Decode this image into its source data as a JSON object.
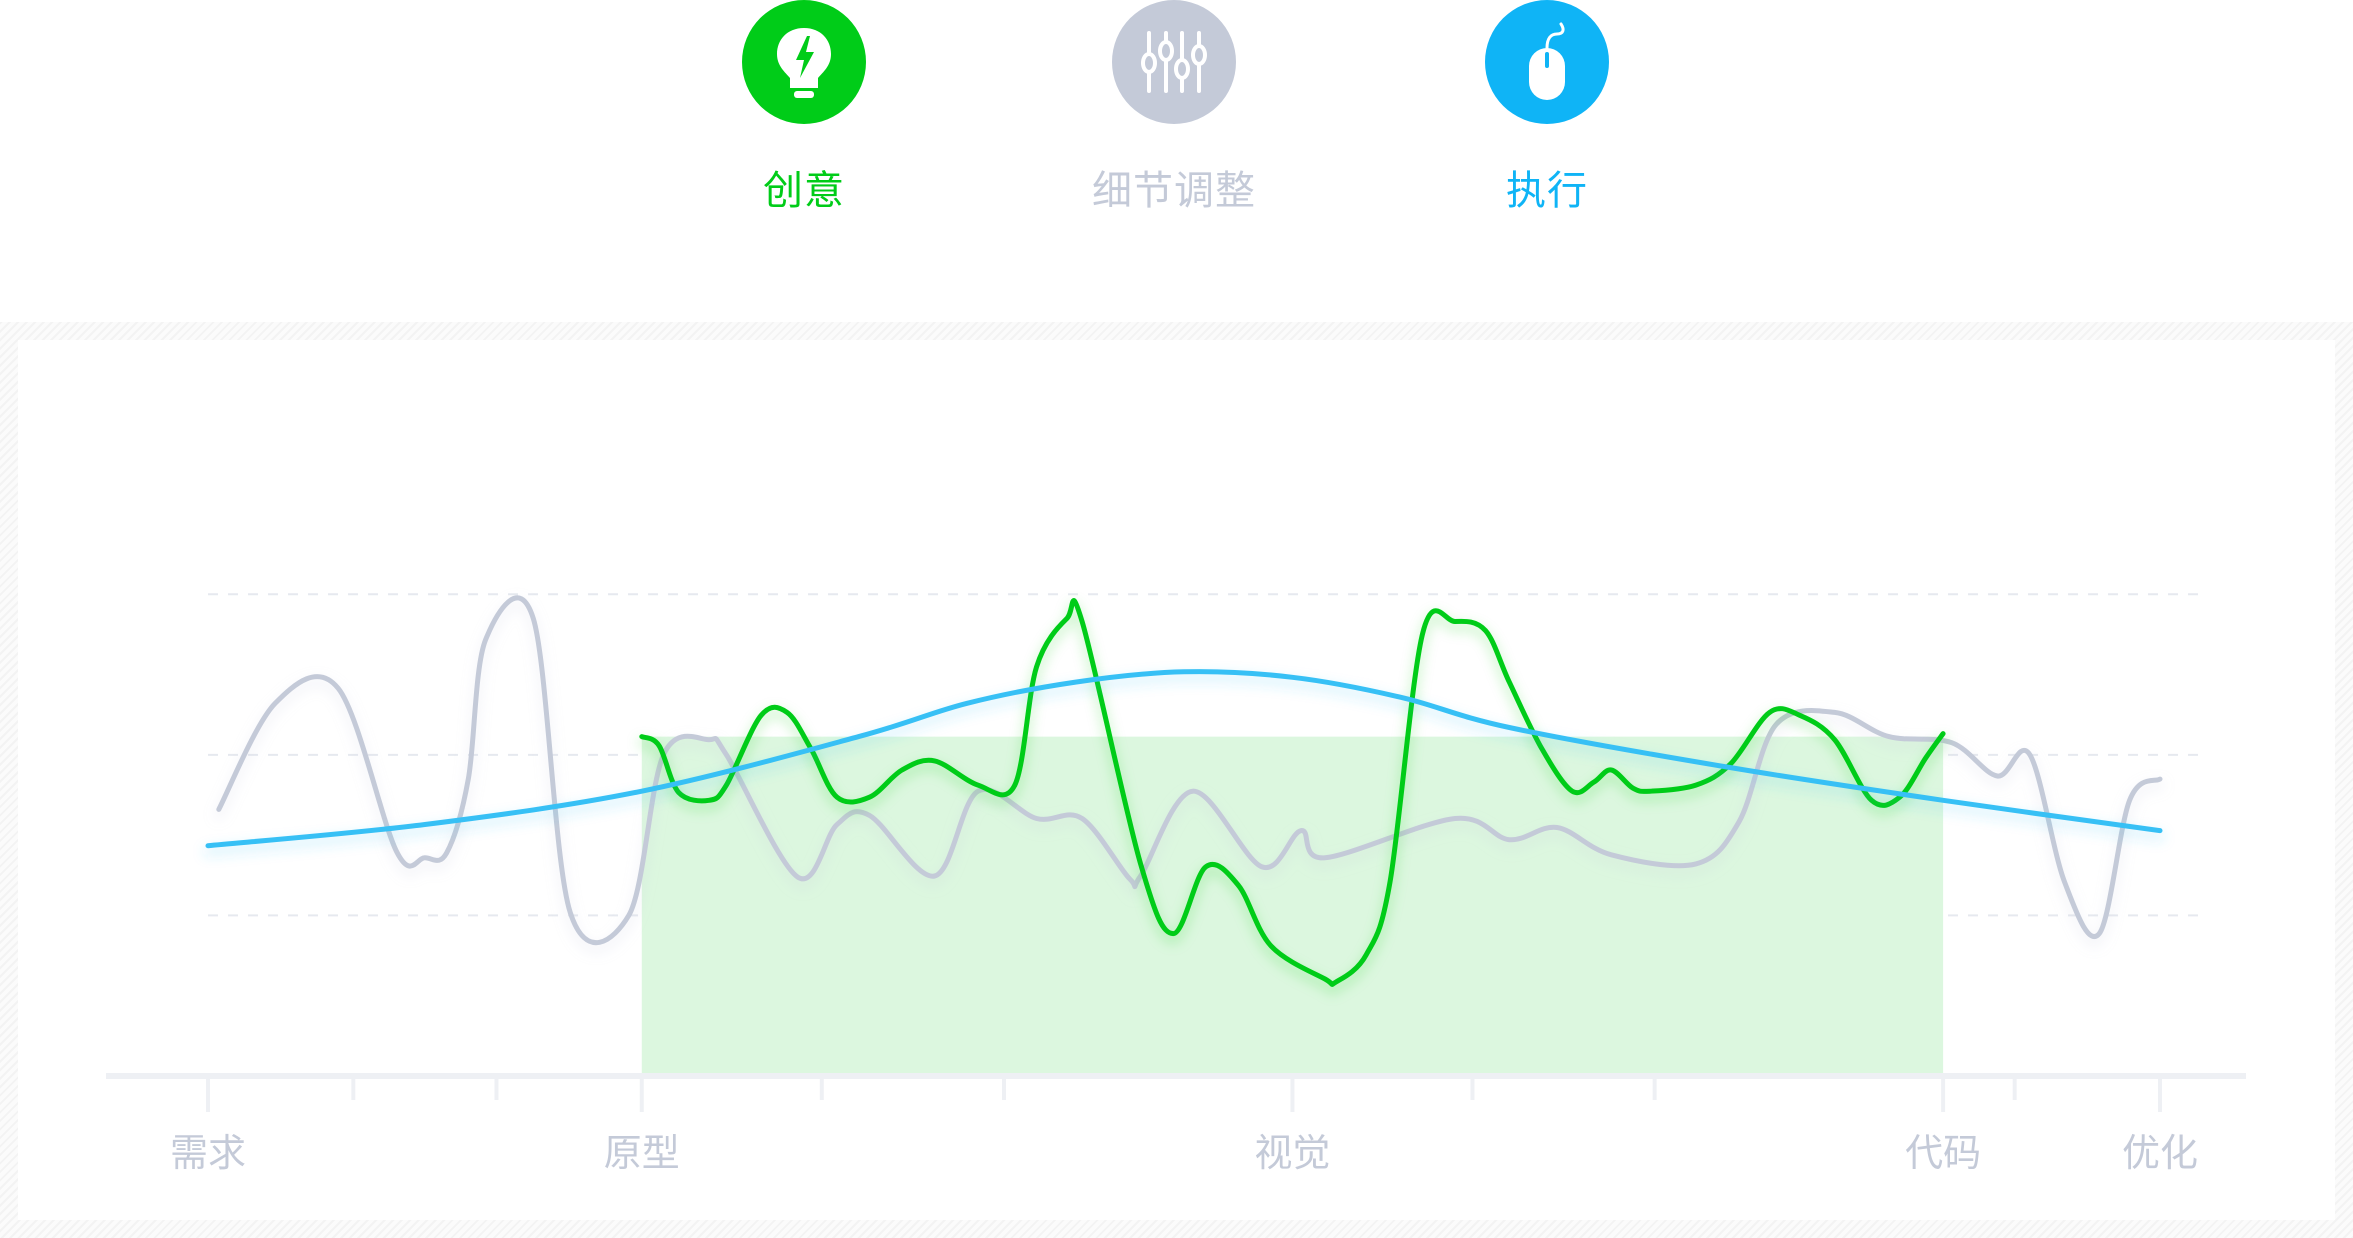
{
  "legend": [
    {
      "label": "创意",
      "color": "#00cc18",
      "icon": "lightbulb-bolt-icon"
    },
    {
      "label": "细节调整",
      "color": "#c4cad8",
      "icon": "sliders-icon"
    },
    {
      "label": "执行",
      "color": "#0fb4f6",
      "icon": "mouse-icon"
    }
  ],
  "chart_data": {
    "type": "line",
    "categories": [
      "需求",
      "原型",
      "视觉",
      "代码",
      "优化"
    ],
    "series": [
      {
        "name": "细节调整",
        "color": "#c4cad8",
        "x": [
          0.05,
          0.31,
          0.6,
          0.87,
          1.0,
          1.1,
          1.2,
          1.28,
          1.5,
          1.67,
          1.94,
          2.1,
          2.31,
          2.39,
          2.72,
          2.9,
          3.05,
          3.35,
          3.55,
          3.82,
          4.03,
          4.25,
          4.3,
          4.54,
          4.86,
          5.04,
          5.15,
          5.75,
          6.0,
          6.22,
          6.47,
          6.86,
          7.06,
          7.23,
          7.5,
          7.75,
          8.04,
          8.25,
          8.4,
          8.56,
          8.72,
          8.86,
          9.0
        ],
        "y": [
          4.4,
          6.15,
          6.4,
          3.7,
          3.6,
          3.68,
          4.9,
          7.2,
          7.55,
          2.7,
          2.65,
          5.3,
          5.55,
          5.3,
          3.28,
          4.15,
          4.3,
          3.3,
          4.7,
          4.25,
          4.25,
          3.25,
          3.3,
          4.7,
          3.45,
          4.05,
          3.6,
          4.25,
          3.9,
          4.1,
          3.65,
          3.5,
          4.2,
          5.8,
          6.0,
          5.6,
          5.5,
          4.95,
          5.3,
          3.2,
          2.35,
          4.55,
          4.9
        ]
      },
      {
        "name": "创意",
        "color": "#00cc18",
        "x": [
          2.0,
          2.08,
          2.17,
          2.31,
          2.39,
          2.55,
          2.67,
          2.78,
          2.9,
          3.05,
          3.2,
          3.35,
          3.55,
          3.72,
          3.82,
          3.96,
          4.03,
          4.3,
          4.45,
          4.6,
          4.75,
          4.9,
          5.15,
          5.2,
          5.34,
          5.45,
          5.6,
          5.75,
          5.89,
          6.0,
          6.15,
          6.29,
          6.39,
          6.47,
          6.57,
          6.65,
          6.86,
          7.02,
          7.2,
          7.34,
          7.5,
          7.67,
          7.8,
          7.92,
          8.0
        ],
        "y": [
          5.6,
          5.45,
          4.68,
          4.55,
          4.8,
          5.95,
          6.0,
          5.4,
          4.6,
          4.6,
          5.05,
          5.2,
          4.8,
          4.8,
          6.75,
          7.55,
          7.5,
          3.5,
          2.35,
          3.45,
          3.15,
          2.15,
          1.6,
          1.55,
          2.0,
          3.2,
          7.3,
          7.5,
          7.35,
          6.5,
          5.4,
          4.7,
          4.85,
          5.05,
          4.75,
          4.7,
          4.8,
          5.15,
          6.0,
          5.95,
          5.55,
          4.55,
          4.6,
          5.25,
          5.65
        ]
      },
      {
        "name": "执行",
        "color": "#37c0f5",
        "x": [
          0,
          1,
          2,
          3,
          3.5,
          4,
          4.5,
          5,
          5.5,
          6,
          7,
          8,
          9
        ],
        "y": [
          3.8,
          4.15,
          4.7,
          5.6,
          6.15,
          6.5,
          6.67,
          6.58,
          6.25,
          5.75,
          5.1,
          4.55,
          4.05
        ]
      }
    ],
    "highlight_range": [
      2,
      8
    ],
    "xlim": [
      0,
      9
    ],
    "ylim": [
      0,
      10
    ],
    "grid": true,
    "legend_position": "top"
  }
}
